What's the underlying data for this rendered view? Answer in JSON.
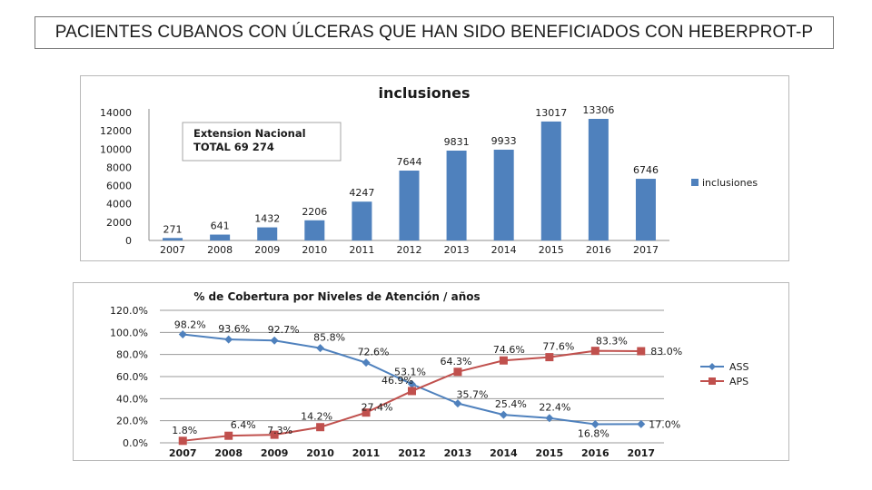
{
  "page": {
    "title": "PACIENTES CUBANOS CON ÚLCERAS QUE HAN SIDO BENEFICIADOS CON HEBERPROT-P"
  },
  "chart_data": [
    {
      "type": "bar",
      "title": "inclusiones",
      "categories": [
        "2007",
        "2008",
        "2009",
        "2010",
        "2011",
        "2012",
        "2013",
        "2014",
        "2015",
        "2016",
        "2017"
      ],
      "series": [
        {
          "name": "inclusiones",
          "values": [
            271,
            641,
            1432,
            2206,
            4247,
            7644,
            9831,
            9933,
            13017,
            13306,
            6746
          ],
          "color": "#4f81bd"
        }
      ],
      "data_labels": [
        "271",
        "641",
        "1432",
        "2206",
        "4247",
        "7644",
        "9831",
        "9933",
        "13017",
        "13306",
        "6746"
      ],
      "y_ticks": [
        "0",
        "2000",
        "4000",
        "6000",
        "8000",
        "10000",
        "12000",
        "14000"
      ],
      "ylim": [
        0,
        14000
      ],
      "xlabel": "",
      "ylabel": "",
      "legend": "right",
      "annotation": {
        "line1": "Extension Nacional",
        "line2": "TOTAL   69 274"
      }
    },
    {
      "type": "line",
      "title": "% de Cobertura por Niveles de Atención / años",
      "categories": [
        "2007",
        "2008",
        "2009",
        "2010",
        "2011",
        "2012",
        "2013",
        "2014",
        "2015",
        "2016",
        "2017"
      ],
      "series": [
        {
          "name": "ASS",
          "values": [
            98.2,
            93.6,
            92.7,
            85.8,
            72.6,
            53.1,
            35.7,
            25.4,
            22.4,
            16.8,
            17.0
          ],
          "labels": [
            "98.2%",
            "93.6%",
            "92.7%",
            "85.8%",
            "72.6%",
            "53.1%",
            "35.7%",
            "25.4%",
            "22.4%",
            "16.8%",
            "17.0%"
          ],
          "color": "#4f81bd",
          "marker": "diamond"
        },
        {
          "name": "APS",
          "values": [
            1.8,
            6.4,
            7.3,
            14.2,
            27.4,
            46.9,
            64.3,
            74.6,
            77.6,
            83.3,
            83.0
          ],
          "labels": [
            "1.8%",
            "6.4%",
            "7.3%",
            "14.2%",
            "27.4%",
            "46.9%",
            "64.3%",
            "74.6%",
            "77.6%",
            "83.3%",
            "83.0%"
          ],
          "color": "#c0504d",
          "marker": "square"
        }
      ],
      "y_ticks": [
        "0.0%",
        "20.0%",
        "40.0%",
        "60.0%",
        "80.0%",
        "100.0%",
        "120.0%"
      ],
      "ylim": [
        0,
        120
      ],
      "xlabel": "",
      "ylabel": "",
      "legend": "right",
      "grid": true
    }
  ]
}
